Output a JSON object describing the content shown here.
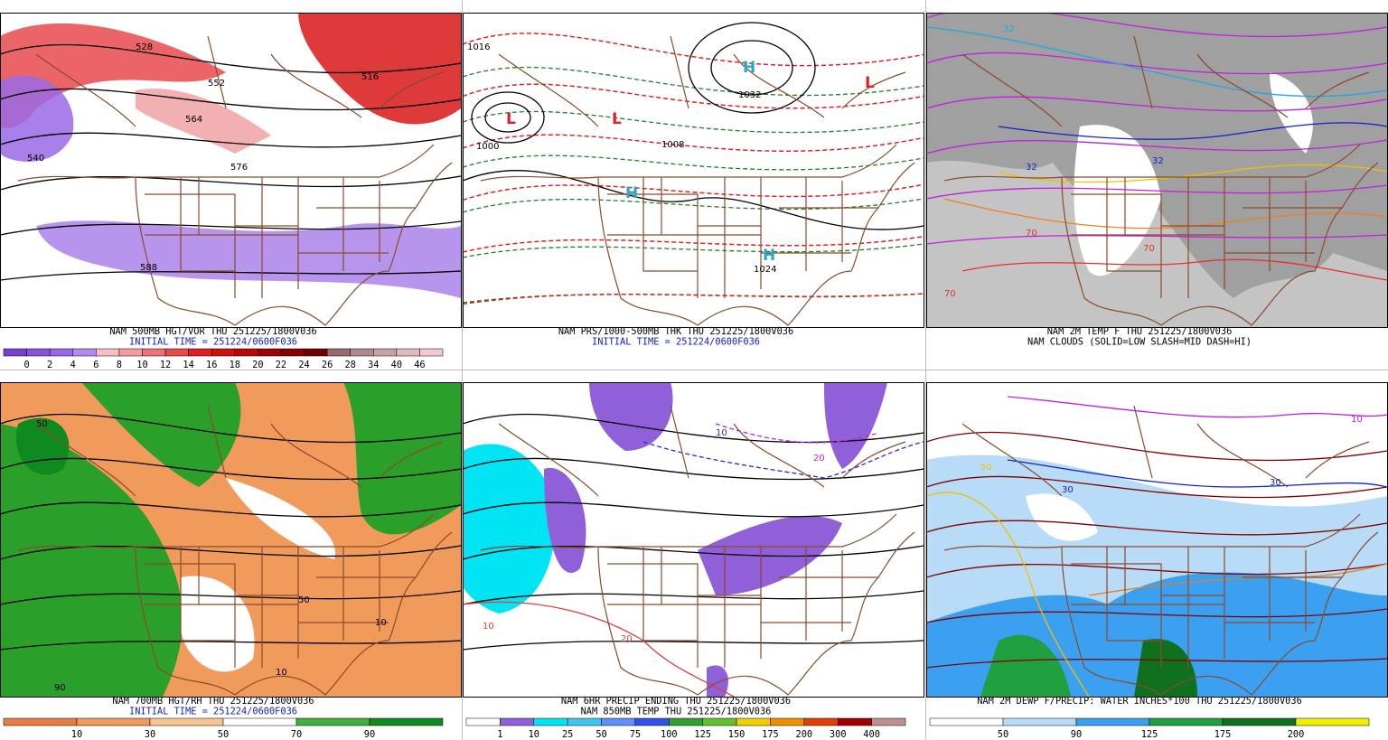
{
  "panels": [
    {
      "caption": [
        {
          "text": "NAM 500MB HGT/VOR THU 251225/1800V036",
          "color": "#000000"
        },
        {
          "text": "INITIAL TIME = 251224/0600F036",
          "color": "#1020c0"
        }
      ],
      "colorbar": {
        "colors": [
          "#7a3fd0",
          "#8a52dc",
          "#9a68e6",
          "#b08af0",
          "#f4c0c4",
          "#f09ca0",
          "#ec7478",
          "#e84a4e",
          "#e02020",
          "#d01010",
          "#b80808",
          "#a00000",
          "#880000",
          "#700000",
          "#9c6870",
          "#b08890",
          "#c8a0a8",
          "#e0b8c0",
          "#f4c8d0"
        ],
        "labels": [
          "0",
          "2",
          "4",
          "6",
          "8",
          "10",
          "12",
          "14",
          "16",
          "18",
          "20",
          "22",
          "24",
          "26",
          "28",
          "34",
          "40",
          "46"
        ]
      },
      "map_labels": [
        "528",
        "540",
        "552",
        "564",
        "576",
        "588",
        "516"
      ]
    },
    {
      "caption": [
        {
          "text": "NAM PRS/1000-500MB THK THU 251225/1800V036",
          "color": "#000000"
        },
        {
          "text": "INITIAL TIME = 251224/0600F036",
          "color": "#1020c0"
        }
      ],
      "map_labels": [
        "L",
        "L",
        "L",
        "H",
        "H",
        "H",
        "1016",
        "1024",
        "1000",
        "1032",
        "1008"
      ]
    },
    {
      "caption": [
        {
          "text": "NAM 2M TEMP F THU 251225/1800V036",
          "color": "#000000"
        },
        {
          "text": "NAM CLOUDS (SOLID=LOW SLASH=MID DASH=HI)",
          "color": "#000000"
        }
      ],
      "map_labels": [
        "32",
        "32",
        "32",
        "70",
        "70",
        "70"
      ]
    },
    {
      "caption": [
        {
          "text": "NAM 700MB HGT/RH THU 251225/1800V036",
          "color": "#000000"
        },
        {
          "text": "INITIAL TIME = 251224/0600F036",
          "color": "#1020c0"
        }
      ],
      "colorbar": {
        "colors": [
          "#e87a44",
          "#f09a5c",
          "#f8c490",
          "#ffffff",
          "#40b040",
          "#0e8a1e"
        ],
        "labels": [
          "10",
          "30",
          "50",
          "70",
          "90"
        ]
      },
      "map_labels": [
        "50",
        "50",
        "10",
        "90",
        "10"
      ]
    },
    {
      "caption": [
        {
          "text": "NAM 6HR PRECIP ENDING THU 251225/1800V036",
          "color": "#000000"
        },
        {
          "text": "NAM 850MB TEMP THU 251225/1800V036",
          "color": "#000000"
        }
      ],
      "colorbar": {
        "colors": [
          "#ffffff",
          "#9060d8",
          "#00e4f4",
          "#40c4f0",
          "#6090ff",
          "#3050e8",
          "#30a030",
          "#60c030",
          "#f0d000",
          "#f09000",
          "#e04000",
          "#a00000",
          "#c09090"
        ],
        "labels": [
          "1",
          "10",
          "25",
          "50",
          "75",
          "100",
          "125",
          "150",
          "175",
          "200",
          "300",
          "400"
        ]
      },
      "map_labels": [
        "10",
        "20",
        "20",
        "10"
      ]
    },
    {
      "caption": [
        {
          "text": "NAM 2M DEWP F/PRECIP: WATER INCHES*100 THU 251225/1800V036",
          "color": "#000000"
        }
      ],
      "colorbar": {
        "colors": [
          "#ffffff",
          "#b8dcf8",
          "#3ca0f0",
          "#20a040",
          "#10701e",
          "#f0f000"
        ],
        "labels": [
          "50",
          "90",
          "125",
          "175",
          "200"
        ]
      },
      "map_labels": [
        "30",
        "30",
        "50",
        "10"
      ]
    }
  ]
}
